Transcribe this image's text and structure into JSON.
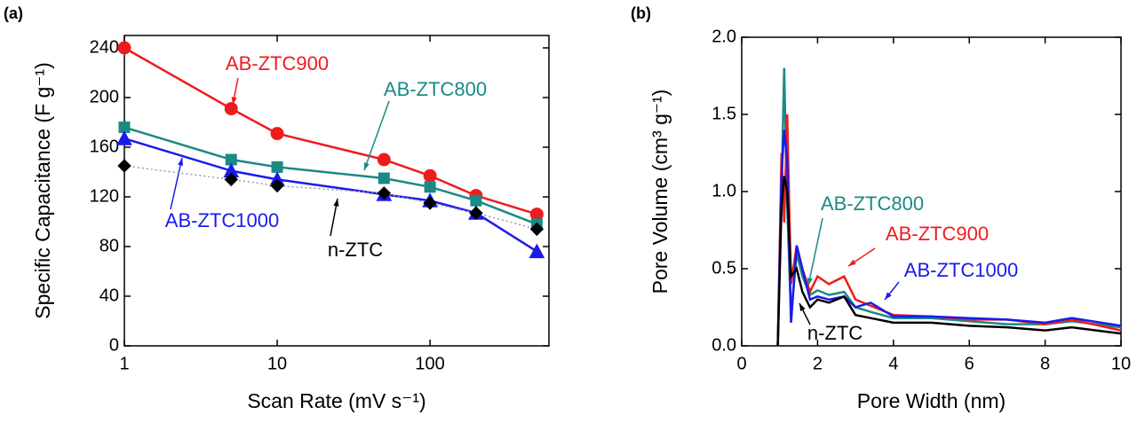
{
  "chart_data": [
    {
      "type": "line",
      "panel_label": "(a)",
      "x_label": "Scan Rate (mV s⁻¹)",
      "y_label": "Specific Capacitance (F g⁻¹)",
      "x": [
        1,
        5,
        10,
        50,
        100,
        200,
        500
      ],
      "xscale": "log",
      "xlim": [
        1,
        600
      ],
      "xticks": [
        1,
        10,
        100
      ],
      "ylim": [
        0,
        250
      ],
      "yticks": [
        0,
        40,
        80,
        120,
        160,
        200,
        240
      ],
      "series": [
        {
          "name": "AB-ZTC900",
          "color": "#ee1c1c",
          "marker": "circle",
          "linestyle": "solid",
          "values": [
            240,
            191,
            171,
            150,
            137,
            121,
            106
          ]
        },
        {
          "name": "AB-ZTC800",
          "color": "#1a8a84",
          "marker": "square",
          "linestyle": "solid",
          "values": [
            176,
            150,
            144,
            135,
            128,
            117,
            98
          ]
        },
        {
          "name": "AB-ZTC1000",
          "color": "#1a1aee",
          "marker": "triangle",
          "linestyle": "solid",
          "values": [
            167,
            141,
            134,
            122,
            117,
            107,
            76
          ]
        },
        {
          "name": "n-ZTC",
          "color": "#000000",
          "line_color": "#999999",
          "marker": "diamond",
          "linestyle": "dotted",
          "values": [
            145,
            134,
            129,
            123,
            115,
            107,
            94
          ]
        }
      ]
    },
    {
      "type": "line",
      "panel_label": "(b)",
      "x_label": "Pore Width (nm)",
      "y_label": "Pore Volume (cm³ g⁻¹)",
      "xscale": "linear",
      "xlim": [
        0,
        10
      ],
      "xticks": [
        0,
        2,
        4,
        6,
        8,
        10
      ],
      "ylim": [
        0,
        2
      ],
      "yticks": [
        {
          "value": 0,
          "label": "0.0"
        },
        {
          "value": 0.5,
          "label": "0.5"
        },
        {
          "value": 1,
          "label": "1.0"
        },
        {
          "value": 1.5,
          "label": "1.5"
        },
        {
          "value": 2,
          "label": "2.0"
        }
      ],
      "series": [
        {
          "name": "AB-ZTC800",
          "color": "#1a8a84",
          "x": [
            0.95,
            1.05,
            1.12,
            1.2,
            1.3,
            1.45,
            1.6,
            1.8,
            2.0,
            2.3,
            2.7,
            3.0,
            3.4,
            4.0,
            5.0,
            6.0,
            7.0,
            8.0,
            8.7,
            10
          ],
          "values": [
            0,
            1.0,
            1.8,
            0.9,
            0.2,
            0.6,
            0.45,
            0.33,
            0.36,
            0.33,
            0.35,
            0.25,
            0.22,
            0.18,
            0.18,
            0.16,
            0.14,
            0.14,
            0.16,
            0.12
          ]
        },
        {
          "name": "AB-ZTC900",
          "color": "#ee1c1c",
          "x": [
            0.95,
            1.05,
            1.12,
            1.2,
            1.3,
            1.45,
            1.6,
            1.8,
            2.0,
            2.3,
            2.7,
            3.0,
            3.4,
            4.0,
            5.0,
            6.0,
            7.0,
            8.0,
            8.7,
            10
          ],
          "values": [
            0,
            1.25,
            0.8,
            1.5,
            0.4,
            0.65,
            0.5,
            0.35,
            0.45,
            0.4,
            0.45,
            0.3,
            0.26,
            0.2,
            0.19,
            0.17,
            0.17,
            0.14,
            0.17,
            0.1
          ]
        },
        {
          "name": "AB-ZTC1000",
          "color": "#1a1aee",
          "x": [
            0.95,
            1.05,
            1.12,
            1.2,
            1.3,
            1.45,
            1.6,
            1.8,
            2.0,
            2.3,
            2.7,
            3.0,
            3.4,
            4.0,
            5.0,
            6.0,
            7.0,
            8.0,
            8.7,
            10
          ],
          "values": [
            0,
            1.1,
            1.4,
            1.2,
            0.15,
            0.65,
            0.5,
            0.3,
            0.32,
            0.3,
            0.32,
            0.25,
            0.28,
            0.19,
            0.19,
            0.18,
            0.17,
            0.15,
            0.18,
            0.13
          ]
        },
        {
          "name": "n-ZTC",
          "color": "#000000",
          "x": [
            0.95,
            1.05,
            1.12,
            1.2,
            1.3,
            1.45,
            1.6,
            1.8,
            2.0,
            2.3,
            2.7,
            3.0,
            3.4,
            4.0,
            5.0,
            6.0,
            7.0,
            8.0,
            8.7,
            10
          ],
          "values": [
            0,
            0.9,
            1.1,
            1.0,
            0.45,
            0.5,
            0.35,
            0.25,
            0.3,
            0.28,
            0.32,
            0.2,
            0.18,
            0.15,
            0.15,
            0.13,
            0.12,
            0.1,
            0.12,
            0.08
          ]
        }
      ]
    }
  ]
}
